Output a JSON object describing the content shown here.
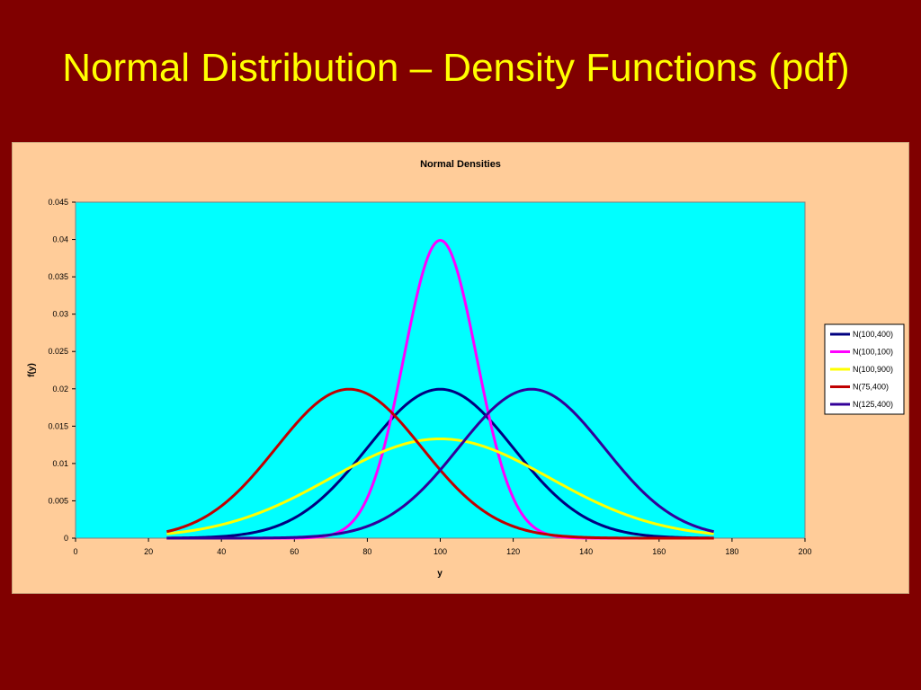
{
  "slide": {
    "title": "Normal Distribution – Density Functions (pdf)"
  },
  "colors": {
    "background": "#800000",
    "title_text": "#ffff00",
    "chart_area": "#ffcc99",
    "plot_area": "#00ffff"
  },
  "chart_data": {
    "type": "line",
    "title": "Normal Densities",
    "xlabel": "y",
    "ylabel": "f(y)",
    "xlim": [
      0,
      200
    ],
    "ylim": [
      0,
      0.045
    ],
    "x_ticks": [
      0,
      20,
      40,
      60,
      80,
      100,
      120,
      140,
      160,
      180,
      200
    ],
    "y_ticks": [
      0,
      0.005,
      0.01,
      0.015,
      0.02,
      0.025,
      0.03,
      0.035,
      0.04,
      0.045
    ],
    "grid": false,
    "legend": "right",
    "x_range": [
      25,
      175
    ],
    "series": [
      {
        "name": "N(100,400)",
        "distribution": "normal",
        "mean": 100,
        "variance": 400,
        "color": "#000080"
      },
      {
        "name": "N(100,100)",
        "distribution": "normal",
        "mean": 100,
        "variance": 100,
        "color": "#ff00ff"
      },
      {
        "name": "N(100,900)",
        "distribution": "normal",
        "mean": 100,
        "variance": 900,
        "color": "#ffff00"
      },
      {
        "name": "N(75,400)",
        "distribution": "normal",
        "mean": 75,
        "variance": 400,
        "color": "#c00000"
      },
      {
        "name": "N(125,400)",
        "distribution": "normal",
        "mean": 125,
        "variance": 400,
        "color": "#330099"
      }
    ]
  }
}
